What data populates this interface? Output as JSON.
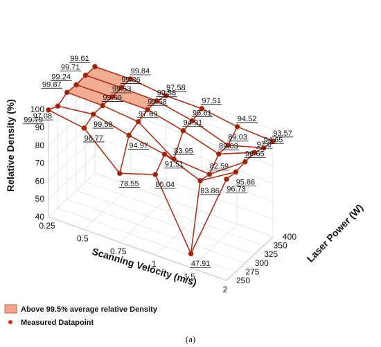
{
  "chart_data": {
    "type": "surface3d",
    "x": {
      "label": "Scanning Velocity (m/s)",
      "ticks": [
        "0.25",
        "0.5",
        "0.75",
        "1",
        "1.5",
        "2"
      ]
    },
    "y": {
      "label": "Laser Power (W)",
      "ticks": [
        "250",
        "275",
        "300",
        "325",
        "350",
        "400"
      ]
    },
    "z": {
      "label": "Relative Density (%)",
      "ticks": [
        "40",
        "50",
        "60",
        "70",
        "80",
        "90",
        "100"
      ],
      "range": [
        40,
        100
      ]
    },
    "grid": [
      {
        "value": 99.79,
        "label": "99.79"
      },
      {
        "value": 96.77,
        "label": "96.77"
      },
      {
        "value": 78.55,
        "label": "78.55"
      },
      {
        "value": 85.04,
        "label": "85.04"
      },
      {
        "value": 47.91,
        "label": "47.91"
      },
      {
        "value": 96.73,
        "label": "96.73"
      },
      {
        "value": 97.08,
        "label": "97.08"
      },
      {
        "value": 99.58,
        "label": "99.58"
      },
      {
        "value": 94.97,
        "label": "94.97"
      },
      {
        "value": 91.51,
        "label": "91.51"
      },
      {
        "value": 83.86,
        "label": "83.86"
      },
      {
        "value": 95.86,
        "label": "95.86"
      },
      {
        "value": 99.87,
        "label": "99.87"
      },
      {
        "value": 99.59,
        "label": "99.59"
      },
      {
        "value": 97.69,
        "label": "97.69"
      },
      {
        "value": 83.95,
        "label": "83.95"
      },
      {
        "value": 82.59,
        "label": "82.59"
      },
      {
        "value": 96.65,
        "label": "96.65"
      },
      {
        "value": 99.24,
        "label": "99.24"
      },
      {
        "value": 99.53,
        "label": "99.53"
      },
      {
        "value": 99.58,
        "label": "99.58"
      },
      {
        "value": 94.91,
        "label": "94.91"
      },
      {
        "value": 89.03,
        "label": "89.03"
      },
      {
        "value": 97.0,
        "label": "97.0"
      },
      {
        "value": 99.71,
        "label": "99.71"
      },
      {
        "value": 99.86,
        "label": "99.86"
      },
      {
        "value": 99.58,
        "label": "99.58"
      },
      {
        "value": 95.61,
        "label": "95.61"
      },
      {
        "value": 89.03,
        "label": "89.03"
      },
      {
        "value": 94.65,
        "label": "94.65"
      },
      {
        "value": 99.61,
        "label": "99.61"
      },
      {
        "value": 99.84,
        "label": "99.84"
      },
      {
        "value": 97.58,
        "label": "97.58"
      },
      {
        "value": 97.51,
        "label": "97.51"
      },
      {
        "value": 94.52,
        "label": "94.52"
      },
      {
        "value": 93.57,
        "label": "93.57"
      }
    ],
    "legend": [
      {
        "label": "Above 99.5% average relative Density",
        "color": "#f0a58c"
      },
      {
        "label": "Measured Datapoint",
        "color": "#d42a1a"
      }
    ],
    "colors": {
      "line": "#a8331c",
      "marker": "#8a2b10",
      "highlight": "#f0a58c"
    },
    "caption": "(a)"
  }
}
